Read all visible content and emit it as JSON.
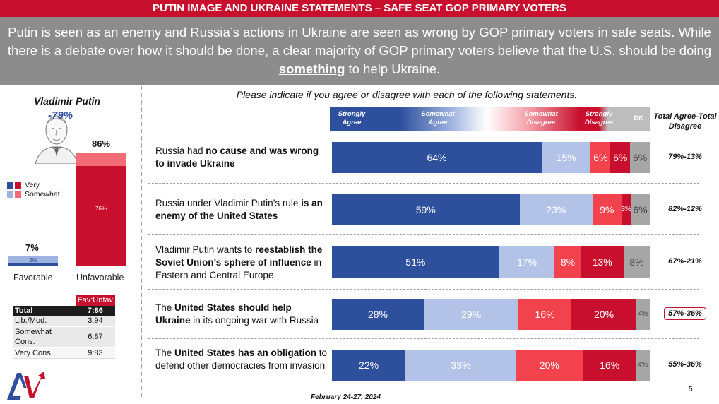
{
  "header": {
    "title": "PUTIN IMAGE AND UKRAINE STATEMENTS – SAFE SEAT GOP PRIMARY VOTERS",
    "subtitle_pre": "Putin is seen as an enemy and Russia’s actions in Ukraine are seen as wrong by GOP primary voters in safe seats.  While there is a debate over how it should be done, a clear majority of GOP primary voters believe that the U.S. should be doing ",
    "subtitle_emph": "something",
    "subtitle_post": " to help Ukraine."
  },
  "putin_panel": {
    "title": "Vladimir Putin",
    "net": "-79%",
    "legend": {
      "very": "Very",
      "somewhat": "Somewhat"
    },
    "colors": {
      "fav_very": "#2e4f9c",
      "fav_somewhat": "#9fb3e0",
      "unfav_very": "#c8102e",
      "unfav_somewhat": "#f26b75"
    }
  },
  "chart_data": [
    {
      "type": "bar",
      "title": "Vladimir Putin",
      "categories": [
        "Favorable",
        "Unfavorable"
      ],
      "totals": [
        "7%",
        "86%"
      ],
      "series": [
        {
          "name": "Very",
          "values": [
            2,
            76
          ],
          "labels": [
            "2%",
            "76%"
          ]
        },
        {
          "name": "Somewhat",
          "values": [
            5,
            10
          ]
        }
      ],
      "ylim": [
        0,
        100
      ]
    },
    {
      "type": "bar",
      "title": "Please indicate if you agree or disagree with each of the following statements.",
      "orientation": "horizontal-stacked",
      "legend_position": "top",
      "series_names": [
        "Strongly Agree",
        "Somewhat Agree",
        "Somewhat Disagree",
        "Strongly Disagree",
        "DK"
      ],
      "series_colors": [
        "#2e4f9c",
        "#b3c3e8",
        "#f2424e",
        "#c8102e",
        "#a6a6a6"
      ],
      "total_header": "Total Agree-Total Disagree",
      "rows": [
        {
          "values": [
            64,
            15,
            6,
            6,
            6
          ],
          "labels": [
            "64%",
            "15%",
            "6%",
            "6%",
            "6%"
          ],
          "total": "79%-13%",
          "highlight": false
        },
        {
          "values": [
            59,
            23,
            9,
            3,
            6
          ],
          "labels": [
            "59%",
            "23%",
            "9%",
            "3%",
            "6%"
          ],
          "total": "82%-12%",
          "highlight": false
        },
        {
          "values": [
            51,
            17,
            8,
            13,
            8
          ],
          "labels": [
            "51%",
            "17%",
            "8%",
            "13%",
            "8%"
          ],
          "total": "67%-21%",
          "highlight": false
        },
        {
          "values": [
            28,
            29,
            16,
            20,
            4
          ],
          "labels": [
            "28%",
            "29%",
            "16%",
            "20%",
            "4%"
          ],
          "total": "57%-36%",
          "highlight": true
        },
        {
          "values": [
            22,
            33,
            20,
            16,
            4
          ],
          "labels": [
            "22%",
            "33%",
            "20%",
            "16%",
            "4%"
          ],
          "total": "55%-36%",
          "highlight": false
        }
      ]
    }
  ],
  "statements": [
    {
      "a": "Russia had ",
      "b": "no cause and was wrong to invade Ukraine",
      "c": ""
    },
    {
      "a": "Russia under Vladimir Putin’s rule ",
      "b": "is an enemy of the United States",
      "c": ""
    },
    {
      "a": "Vladimir Putin wants to ",
      "b": "reestablish the Soviet Union’s sphere of influence",
      "c": " in Eastern and Central Europe"
    },
    {
      "a": "The ",
      "b": "United States should help Ukraine",
      "c": " in its ongoing war with Russia"
    },
    {
      "a": "The ",
      "b": "United States has an obligation",
      "c": " to defend other democracies from invasion"
    }
  ],
  "fav_table": {
    "header": "Fav:Unfav",
    "rows": [
      {
        "label": "Total",
        "value": "7:86"
      },
      {
        "label": "Lib./Mod.",
        "value": "3:94"
      },
      {
        "label": "Somewhat Cons.",
        "value": "6:87"
      },
      {
        "label": "Very Cons.",
        "value": "9:83"
      }
    ]
  },
  "footer": {
    "date": "February 24-27, 2024",
    "page": "5"
  }
}
